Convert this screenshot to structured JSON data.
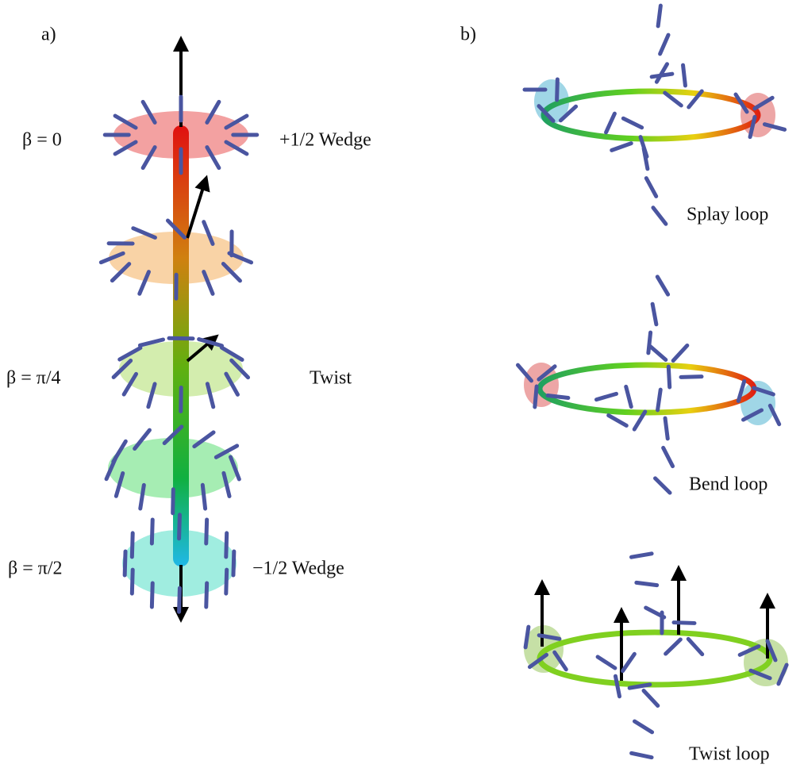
{
  "panel_a": {
    "label": "a)",
    "beta_labels": [
      "β = 0",
      "β = π/4",
      "β = π/2"
    ],
    "defect_labels": [
      "+1/2 Wedge",
      "Twist",
      "−1/2 Wedge"
    ]
  },
  "panel_b": {
    "label": "b)",
    "loop_labels": [
      "Splay loop",
      "Bend loop",
      "Twist loop"
    ]
  }
}
